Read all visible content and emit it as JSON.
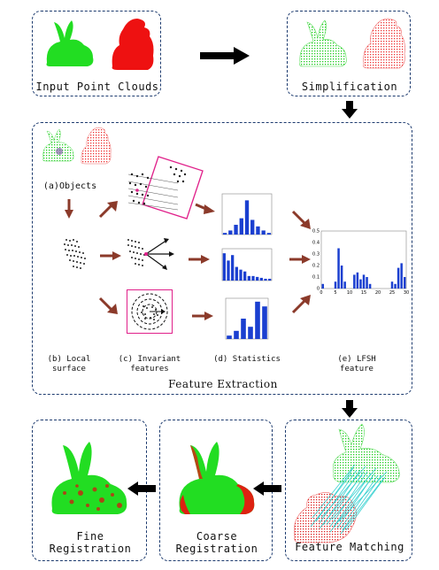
{
  "stages": {
    "input_label": "Input Point Clouds",
    "simplification_label": "Simplification",
    "feature_extraction_label": "Feature Extraction",
    "feature_matching_label": "Feature Matching",
    "coarse_label_1": "Coarse",
    "coarse_label_2": "Registration",
    "fine_label_1": "Fine",
    "fine_label_2": "Registration"
  },
  "extraction": {
    "objects_label": "(a)Objects",
    "local_label_1": "(b) Local",
    "local_label_2": "surface",
    "invariant_label_1": "(c) Invariant",
    "invariant_label_2": "features",
    "statistics_label": "(d) Statistics",
    "lfsh_label_1": "(e) LFSH",
    "lfsh_label_2": "feature"
  },
  "colors": {
    "source": "#22dd22",
    "target": "#ee1111",
    "frame": "#1c3a6e",
    "arrow": "#8b3a2a",
    "bar": "#1a3fd0",
    "plane": "#e0208a"
  },
  "chart_data": [
    {
      "type": "bar",
      "values": [
        0.02,
        0.05,
        0.12,
        0.2,
        0.42,
        0.18,
        0.1,
        0.05,
        0.02
      ],
      "ylim": [
        0,
        0.5
      ]
    },
    {
      "type": "bar",
      "values": [
        0.3,
        0.22,
        0.28,
        0.15,
        0.12,
        0.1,
        0.05,
        0.05,
        0.04,
        0.03,
        0.02,
        0.02
      ],
      "ylim": [
        0,
        0.35
      ]
    },
    {
      "type": "bar",
      "values": [
        0.05,
        0.12,
        0.3,
        0.18,
        0.55,
        0.48
      ],
      "ylim": [
        0,
        0.6
      ]
    },
    {
      "type": "bar",
      "x_ticks": [
        "0",
        "5",
        "10",
        "15",
        "20",
        "25",
        "30"
      ],
      "y_ticks": [
        "0",
        "0.1",
        "0.2",
        "0.3",
        "0.4",
        "0.5"
      ],
      "values": [
        0.04,
        0,
        0,
        0,
        0.06,
        0.35,
        0.2,
        0.06,
        0,
        0,
        0.12,
        0.14,
        0.08,
        0.12,
        0.1,
        0.04,
        0,
        0,
        0,
        0,
        0,
        0,
        0.06,
        0.04,
        0.18,
        0.22,
        0.1
      ],
      "ylim": [
        0,
        0.5
      ]
    }
  ]
}
